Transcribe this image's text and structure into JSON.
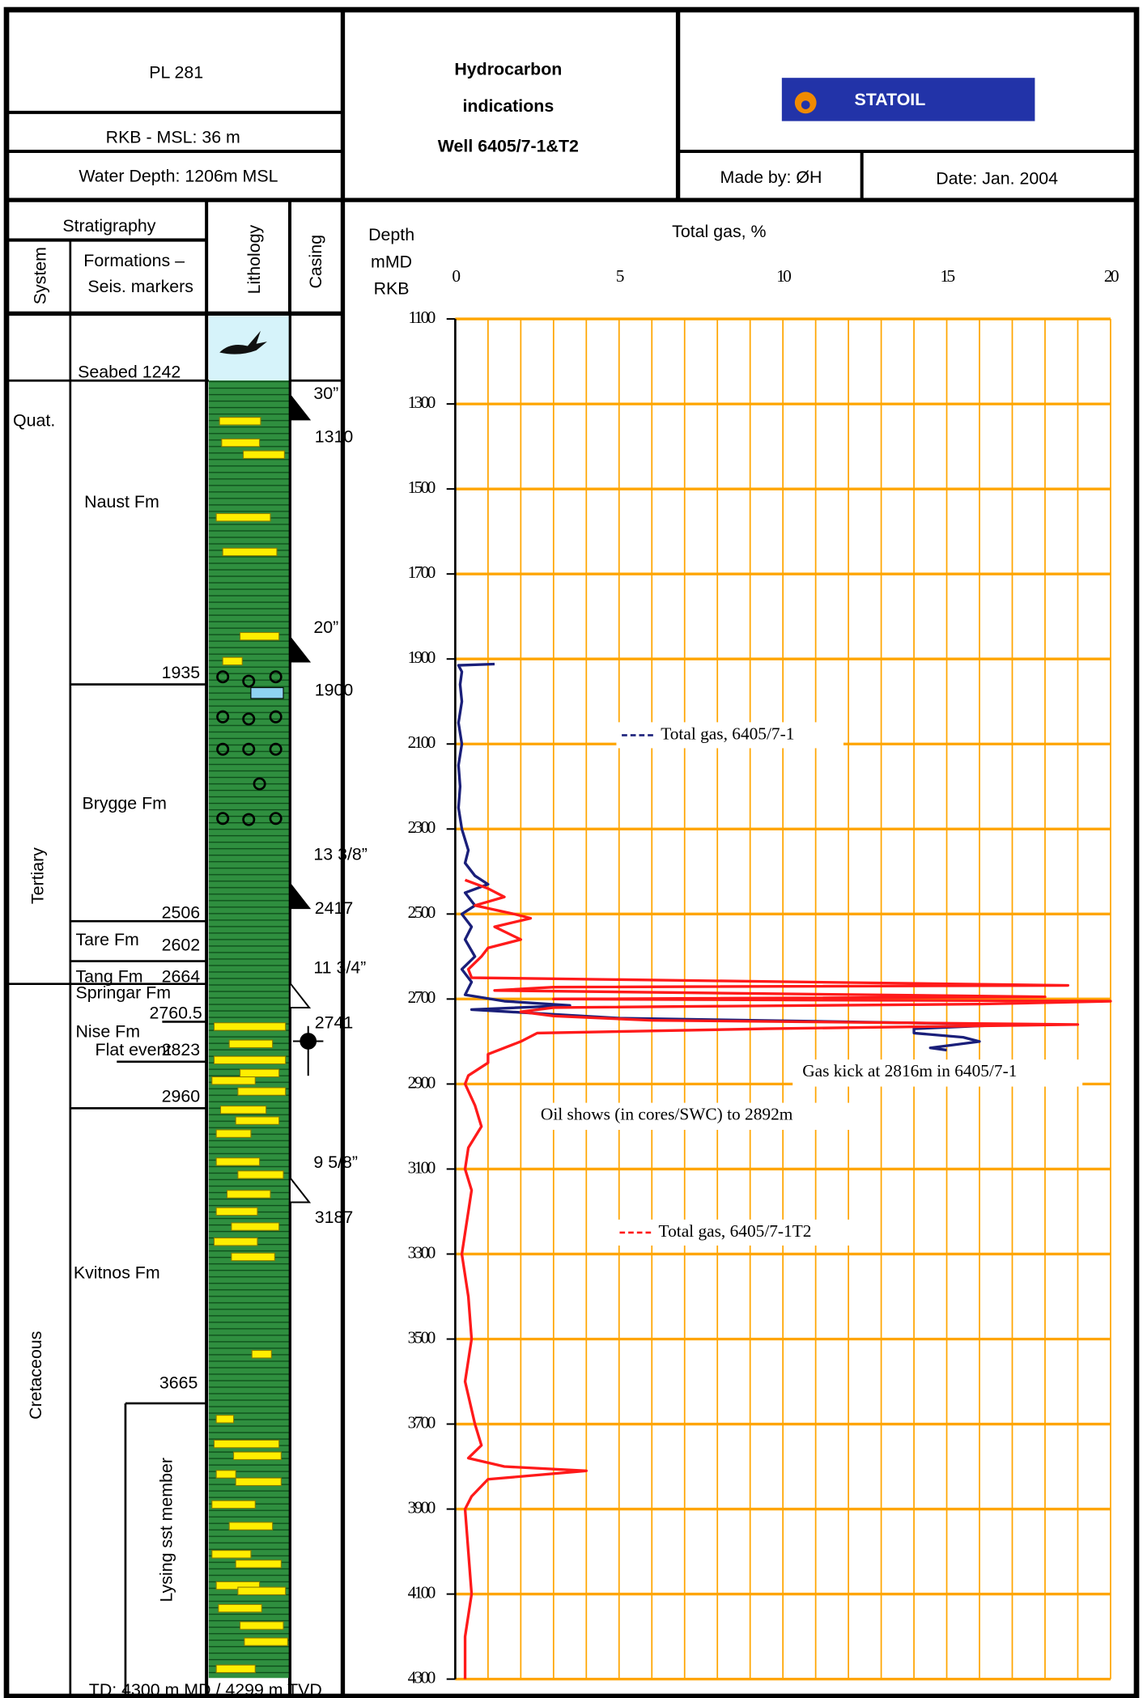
{
  "header": {
    "license": "PL 281",
    "rkb_msl": "RKB - MSL: 36 m",
    "water_depth": "Water Depth:  1206m MSL",
    "title": [
      "Hydrocarbon",
      "indications",
      "Well 6405/7-1&T2"
    ],
    "logo": "STATOIL",
    "made_by": "Made by: ØH",
    "date": "Date: Jan. 2004"
  },
  "columns": {
    "stratigraphy": "Stratigraphy",
    "system": "System",
    "formations": [
      "Formations –",
      "Seis. markers"
    ],
    "lithology": "Lithology",
    "casing": "Casing",
    "depth": [
      "Depth",
      "mMD",
      "RKB"
    ]
  },
  "systems": [
    "Quat.",
    "Tertiary",
    "Cretaceous"
  ],
  "strat_labels": [
    "Seabed 1242",
    "Naust Fm",
    "1935",
    "Brygge Fm",
    "2506",
    "Tare Fm",
    "2602",
    "Tang Fm",
    "2664",
    "Springar Fm",
    "2760.5",
    "Nise Fm",
    "Flat event",
    "2823",
    "2960",
    "Kvitnos Fm",
    "3665",
    "Lysing sst member"
  ],
  "casing": [
    {
      "size": "30”",
      "depth": "1310"
    },
    {
      "size": "20”",
      "depth": "1900"
    },
    {
      "size": "13 3/8”",
      "depth": "2417"
    },
    {
      "size": "11 3/4”",
      "depth": "2741"
    },
    {
      "size": "9 5/8”",
      "depth": "3187"
    }
  ],
  "footer": "TD: 4300 m MD / 4299 m TVD",
  "chart_data": {
    "type": "line",
    "title": "Total gas, %",
    "xlim": [
      0,
      20
    ],
    "xticks": [
      0,
      5,
      10,
      15,
      20
    ],
    "xgrid": [
      0,
      1,
      2,
      3,
      4,
      5,
      6,
      7,
      8,
      9,
      10,
      11,
      12,
      13,
      14,
      15,
      16,
      17,
      18,
      19,
      20
    ],
    "ylim": [
      1100,
      4300
    ],
    "yticks": [
      1100,
      1300,
      1500,
      1700,
      1900,
      2100,
      2300,
      2500,
      2700,
      2900,
      3100,
      3300,
      3500,
      3700,
      3900,
      4100,
      4300
    ],
    "y_inverted": true,
    "grid": true,
    "grid_color": "#ffa500",
    "series": [
      {
        "name": "Total gas, 6405/7-1",
        "color": "#1a1f7a",
        "depth": [
          1912,
          1915,
          1930,
          1960,
          2000,
          2050,
          2100,
          2150,
          2200,
          2250,
          2300,
          2350,
          2380,
          2410,
          2430,
          2450,
          2480,
          2500,
          2530,
          2560,
          2600,
          2630,
          2660,
          2690,
          2705,
          2715,
          2725,
          2745,
          2760,
          2770,
          2780,
          2790,
          2800,
          2815,
          2820
        ],
        "values": [
          1.2,
          0.1,
          0.2,
          0.15,
          0.2,
          0.1,
          0.2,
          0.1,
          0.15,
          0.1,
          0.2,
          0.4,
          0.3,
          0.6,
          1.0,
          0.3,
          0.6,
          0.2,
          0.5,
          0.3,
          0.6,
          0.2,
          0.5,
          0.3,
          1.5,
          3.5,
          0.5,
          5,
          17,
          14,
          14,
          15.5,
          16,
          14.5,
          15
        ]
      },
      {
        "name": "Total gas, 6405/7-1T2",
        "color": "#ff1a1a",
        "depth": [
          2420,
          2440,
          2460,
          2480,
          2500,
          2510,
          2530,
          2560,
          2580,
          2600,
          2630,
          2650,
          2668,
          2672,
          2680,
          2695,
          2700,
          2705,
          2712,
          2720,
          2730,
          2740,
          2750,
          2760,
          2770,
          2780,
          2800,
          2830,
          2850,
          2880,
          2900,
          2950,
          3000,
          3050,
          3100,
          3150,
          3200,
          3300,
          3400,
          3500,
          3600,
          3700,
          3750,
          3780,
          3800,
          3810,
          3830,
          3870,
          3900,
          4000,
          4100,
          4200,
          4300
        ],
        "values": [
          0.3,
          1.0,
          1.5,
          0.6,
          1.8,
          2.3,
          1.2,
          2.0,
          1.0,
          0.8,
          0.4,
          0.5,
          18.7,
          3,
          1.2,
          18,
          3,
          20,
          16,
          3,
          2,
          3,
          6,
          19,
          9.5,
          2.5,
          2.0,
          1.0,
          1.0,
          0.4,
          0.3,
          0.6,
          0.8,
          0.4,
          0.3,
          0.5,
          0.4,
          0.2,
          0.4,
          0.5,
          0.3,
          0.6,
          0.8,
          0.4,
          1.5,
          4,
          1.0,
          0.5,
          0.3,
          0.4,
          0.5,
          0.3,
          0.3
        ]
      }
    ],
    "annotations": [
      {
        "text": "Gas kick at 2816m in 6405/7-1"
      },
      {
        "text": "Oil shows (in cores/SWC) to 2892m"
      }
    ]
  }
}
